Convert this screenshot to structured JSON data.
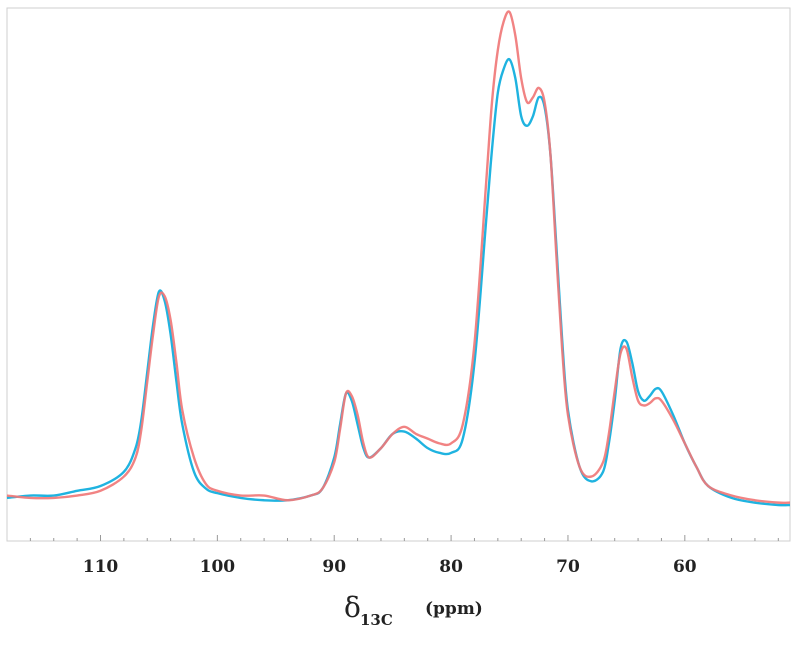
{
  "chart_data": {
    "type": "line",
    "title": "",
    "xlabel": {
      "symbol": "δ",
      "subscript": "13C",
      "unit": "(ppm)"
    },
    "ylabel": "",
    "xlim": [
      118,
      51
    ],
    "x_reversed": true,
    "y_axis_visible": false,
    "ylim": [
      0,
      1
    ],
    "grid": false,
    "legend": "none",
    "xticks": [
      "110",
      "100",
      "90",
      "80",
      "70",
      "60"
    ],
    "x_tick_values": [
      110,
      100,
      90,
      80,
      70,
      60
    ],
    "series": [
      {
        "color": "#1fb3e0",
        "x": [
          118,
          116,
          114,
          112,
          110,
          108,
          107,
          106.5,
          106,
          105.5,
          105,
          104.5,
          104,
          103.5,
          103,
          102,
          101,
          100,
          98,
          96,
          94,
          92,
          91,
          90,
          89.5,
          89,
          88.5,
          88,
          87.5,
          87,
          86,
          85,
          84,
          83,
          82,
          81,
          80,
          79,
          78,
          77,
          76.5,
          76,
          75.5,
          75,
          74.5,
          74,
          73.5,
          73,
          72.5,
          72,
          71.5,
          71,
          70.5,
          70,
          69,
          68,
          67,
          66.5,
          66,
          65.5,
          65,
          64.5,
          64,
          63.5,
          63,
          62.5,
          62,
          61,
          60,
          59,
          58,
          56,
          54,
          52,
          51
        ],
        "values": [
          0.015,
          0.02,
          0.02,
          0.03,
          0.04,
          0.07,
          0.12,
          0.18,
          0.28,
          0.38,
          0.45,
          0.43,
          0.36,
          0.26,
          0.17,
          0.07,
          0.035,
          0.025,
          0.015,
          0.01,
          0.01,
          0.02,
          0.035,
          0.1,
          0.17,
          0.235,
          0.22,
          0.17,
          0.12,
          0.1,
          0.12,
          0.15,
          0.155,
          0.14,
          0.12,
          0.11,
          0.11,
          0.14,
          0.3,
          0.6,
          0.75,
          0.87,
          0.92,
          0.94,
          0.9,
          0.82,
          0.8,
          0.82,
          0.86,
          0.84,
          0.74,
          0.55,
          0.35,
          0.2,
          0.08,
          0.05,
          0.07,
          0.13,
          0.22,
          0.33,
          0.345,
          0.3,
          0.24,
          0.22,
          0.23,
          0.245,
          0.24,
          0.19,
          0.13,
          0.08,
          0.04,
          0.015,
          0.005,
          0.0,
          0.0
        ]
      },
      {
        "color": "#f07878",
        "x": [
          118,
          116,
          114,
          112,
          110,
          108,
          107,
          106.5,
          106,
          105.5,
          105,
          104.5,
          104,
          103.5,
          103,
          102,
          101,
          100,
          98,
          96,
          94,
          92,
          91,
          90,
          89.5,
          89,
          88.5,
          88,
          87.5,
          87,
          86,
          85,
          84,
          83,
          82,
          81,
          80,
          79,
          78,
          77,
          76.5,
          76,
          75.5,
          75,
          74.5,
          74,
          73.5,
          73,
          72.5,
          72,
          71.5,
          71,
          70.5,
          70,
          69,
          68,
          67,
          66.5,
          66,
          65.5,
          65,
          64.5,
          64,
          63.5,
          63,
          62.5,
          62,
          61,
          60,
          59,
          58,
          56,
          54,
          52,
          51
        ],
        "values": [
          0.02,
          0.015,
          0.015,
          0.02,
          0.03,
          0.06,
          0.1,
          0.16,
          0.26,
          0.36,
          0.44,
          0.44,
          0.39,
          0.3,
          0.2,
          0.1,
          0.045,
          0.03,
          0.02,
          0.02,
          0.01,
          0.02,
          0.035,
          0.09,
          0.16,
          0.235,
          0.23,
          0.19,
          0.13,
          0.1,
          0.12,
          0.15,
          0.165,
          0.15,
          0.14,
          0.13,
          0.13,
          0.17,
          0.34,
          0.68,
          0.85,
          0.96,
          1.02,
          1.04,
          0.99,
          0.9,
          0.85,
          0.86,
          0.88,
          0.85,
          0.74,
          0.53,
          0.33,
          0.19,
          0.08,
          0.06,
          0.09,
          0.15,
          0.24,
          0.32,
          0.33,
          0.27,
          0.22,
          0.21,
          0.215,
          0.225,
          0.22,
          0.18,
          0.13,
          0.08,
          0.04,
          0.02,
          0.01,
          0.005,
          0.005
        ]
      }
    ]
  }
}
